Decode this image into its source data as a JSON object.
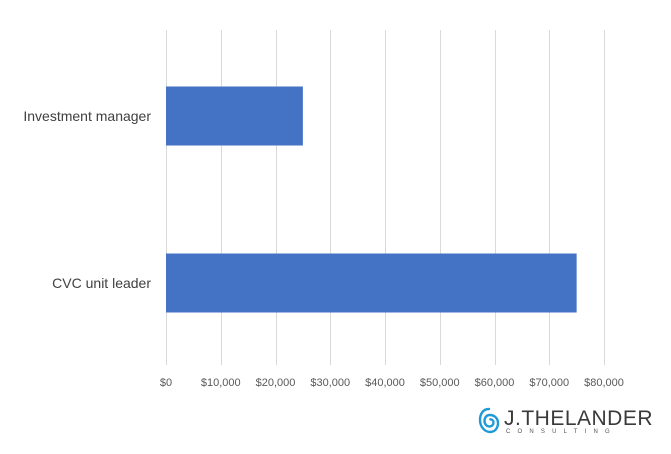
{
  "chart_data": {
    "type": "bar",
    "orientation": "horizontal",
    "categories": [
      "Investment manager",
      "CVC unit leader"
    ],
    "values": [
      25000,
      75000
    ],
    "xlim": [
      0,
      80000
    ],
    "xticks": [
      0,
      10000,
      20000,
      30000,
      40000,
      50000,
      60000,
      70000,
      80000
    ],
    "xtick_labels": [
      "$0",
      "$10,000",
      "$20,000",
      "$30,000",
      "$40,000",
      "$50,000",
      "$60,000",
      "$70,000",
      "$80,000"
    ],
    "grid": "vertical",
    "legend": "none",
    "bar_color": "#4472C4"
  },
  "branding": {
    "logo_text": "J.THELANDER",
    "logo_subtext": "CONSULTING",
    "logo_color": "#1f9ad6"
  }
}
